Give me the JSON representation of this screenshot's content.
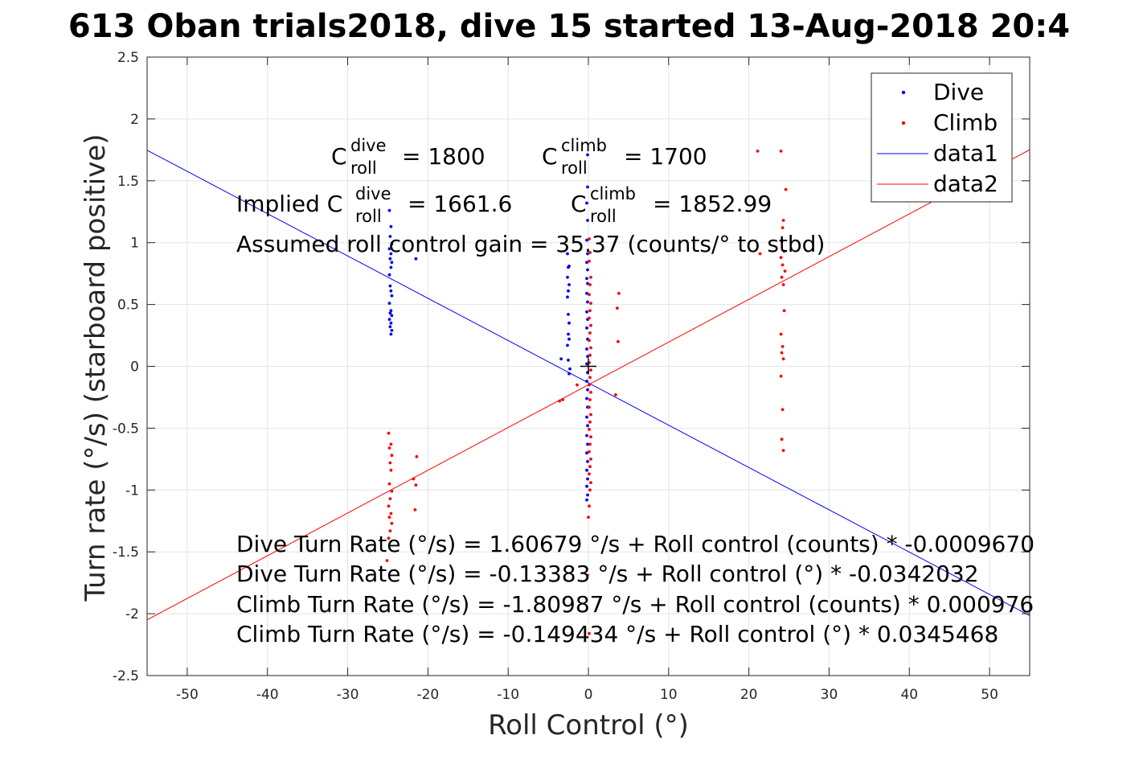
{
  "chart_data": {
    "type": "scatter",
    "title": "613 Oban trials2018, dive 15 started 13-Aug-2018 20:4",
    "xlabel": "Roll Control (°)",
    "ylabel": "Turn rate (°/s) (starboard positive)",
    "xlim": [
      -55,
      55
    ],
    "ylim": [
      -2.5,
      2.5
    ],
    "xticks": [
      -50,
      -40,
      -30,
      -20,
      -10,
      0,
      10,
      20,
      30,
      40,
      50
    ],
    "xtick_labels": [
      "-50",
      "-40",
      "-30",
      "-20",
      "-10",
      "0",
      "10",
      "20",
      "30",
      "40",
      "50"
    ],
    "yticks": [
      -2.5,
      -2,
      -1.5,
      -1,
      -0.5,
      0,
      0.5,
      1,
      1.5,
      2,
      2.5
    ],
    "ytick_labels": [
      "-2.5",
      "-2",
      "-1.5",
      "-1",
      "-0.5",
      "0",
      "0.5",
      "1",
      "1.5",
      "2",
      "2.5"
    ],
    "grid": true,
    "legend": {
      "placement": "top-right",
      "entries": [
        {
          "label": "Dive",
          "kind": "point",
          "color": "#0000ff"
        },
        {
          "label": "Climb",
          "kind": "point",
          "color": "#ff0000"
        },
        {
          "label": "data1",
          "kind": "line",
          "color": "#0000ff"
        },
        {
          "label": "data2",
          "kind": "line",
          "color": "#ff0000"
        }
      ]
    },
    "series": [
      {
        "name": "Dive",
        "color": "#0000ff",
        "points": [
          [
            -24.8,
            1.26
          ],
          [
            -24.6,
            1.13
          ],
          [
            -24.7,
            1.05
          ],
          [
            -24.5,
            0.99
          ],
          [
            -24.8,
            0.95
          ],
          [
            -24.6,
            0.91
          ],
          [
            -24.7,
            0.87
          ],
          [
            -24.5,
            0.84
          ],
          [
            -24.6,
            0.8
          ],
          [
            -24.8,
            0.74
          ],
          [
            -24.7,
            0.65
          ],
          [
            -24.6,
            0.61
          ],
          [
            -24.5,
            0.57
          ],
          [
            -24.8,
            0.51
          ],
          [
            -24.6,
            0.45
          ],
          [
            -24.7,
            0.43
          ],
          [
            -24.5,
            0.41
          ],
          [
            -24.8,
            0.38
          ],
          [
            -24.6,
            0.35
          ],
          [
            -24.7,
            0.32
          ],
          [
            -24.5,
            0.29
          ],
          [
            -24.6,
            0.26
          ],
          [
            -21.5,
            0.87
          ],
          [
            -2.6,
            0.91
          ],
          [
            -2.4,
            0.81
          ],
          [
            -2.5,
            0.8
          ],
          [
            -2.6,
            0.72
          ],
          [
            -2.4,
            0.66
          ],
          [
            -2.5,
            0.61
          ],
          [
            -2.6,
            0.56
          ],
          [
            -2.5,
            0.42
          ],
          [
            -2.4,
            0.35
          ],
          [
            -2.5,
            0.26
          ],
          [
            -2.4,
            0.22
          ],
          [
            -2.6,
            0.17
          ],
          [
            -2.5,
            0.05
          ],
          [
            -3.4,
            0.06
          ],
          [
            -2.3,
            -0.02
          ],
          [
            -2.4,
            -0.06
          ],
          [
            -0.1,
            1.71
          ],
          [
            -0.1,
            1.45
          ],
          [
            -0.2,
            1.32
          ],
          [
            -0.1,
            1.18
          ],
          [
            -0.2,
            1.02
          ],
          [
            -0.1,
            0.91
          ],
          [
            -0.2,
            0.84
          ],
          [
            -0.1,
            0.78
          ],
          [
            -0.2,
            0.71
          ],
          [
            -0.1,
            0.67
          ],
          [
            -0.2,
            0.59
          ],
          [
            -0.1,
            0.52
          ],
          [
            -0.2,
            0.44
          ],
          [
            -0.1,
            0.38
          ],
          [
            -0.2,
            0.31
          ],
          [
            -0.1,
            0.22
          ],
          [
            -0.2,
            0.14
          ],
          [
            -0.1,
            0.08
          ],
          [
            -0.2,
            0.02
          ],
          [
            -0.1,
            -0.05
          ],
          [
            -0.2,
            -0.12
          ],
          [
            -0.1,
            -0.19
          ],
          [
            -0.2,
            -0.26
          ],
          [
            -0.1,
            -0.33
          ],
          [
            -0.2,
            -0.41
          ],
          [
            -0.1,
            -0.48
          ],
          [
            -0.2,
            -0.56
          ],
          [
            -0.1,
            -0.63
          ],
          [
            -0.2,
            -0.7
          ],
          [
            -0.1,
            -0.77
          ],
          [
            -0.2,
            -0.84
          ],
          [
            -0.1,
            -0.91
          ],
          [
            -0.2,
            -0.97
          ],
          [
            -0.1,
            -1.04
          ],
          [
            -0.2,
            -1.08
          ]
        ]
      },
      {
        "name": "Climb",
        "color": "#ff0000",
        "points": [
          [
            -24.9,
            -0.54
          ],
          [
            -24.6,
            -0.63
          ],
          [
            -24.8,
            -0.66
          ],
          [
            -24.5,
            -0.72
          ],
          [
            -24.7,
            -0.78
          ],
          [
            -24.6,
            -0.84
          ],
          [
            -24.8,
            -0.95
          ],
          [
            -24.5,
            -1.01
          ],
          [
            -24.7,
            -1.07
          ],
          [
            -24.9,
            -1.13
          ],
          [
            -24.6,
            -1.19
          ],
          [
            -24.8,
            -1.22
          ],
          [
            -24.5,
            -1.27
          ],
          [
            -24.7,
            -1.33
          ],
          [
            -24.9,
            -1.39
          ],
          [
            -25.1,
            -1.57
          ],
          [
            -21.4,
            -0.73
          ],
          [
            -21.8,
            -0.91
          ],
          [
            -21.5,
            -0.96
          ],
          [
            -21.6,
            -1.16
          ],
          [
            -3.6,
            -0.28
          ],
          [
            -3.2,
            -0.27
          ],
          [
            -1.4,
            -0.15
          ],
          [
            0.1,
            1.03
          ],
          [
            0.2,
            0.92
          ],
          [
            0.1,
            0.85
          ],
          [
            0.3,
            0.72
          ],
          [
            0.2,
            0.66
          ],
          [
            0.1,
            0.58
          ],
          [
            0.3,
            0.51
          ],
          [
            0.2,
            0.45
          ],
          [
            0.1,
            0.39
          ],
          [
            0.3,
            0.33
          ],
          [
            0.2,
            0.27
          ],
          [
            0.1,
            0.21
          ],
          [
            0.3,
            0.15
          ],
          [
            0.2,
            0.09
          ],
          [
            0.1,
            0.03
          ],
          [
            0.3,
            -0.03
          ],
          [
            0.2,
            -0.09
          ],
          [
            0.1,
            -0.15
          ],
          [
            0.3,
            -0.21
          ],
          [
            0.2,
            -0.27
          ],
          [
            0.1,
            -0.33
          ],
          [
            0.3,
            -0.39
          ],
          [
            0.2,
            -0.45
          ],
          [
            0.1,
            -0.51
          ],
          [
            0.3,
            -0.57
          ],
          [
            0.2,
            -0.63
          ],
          [
            0.1,
            -0.69
          ],
          [
            0.3,
            -0.75
          ],
          [
            0.2,
            -0.81
          ],
          [
            0.1,
            -0.87
          ],
          [
            0.3,
            -0.94
          ],
          [
            0.2,
            -1.0
          ],
          [
            0.1,
            -1.13
          ],
          [
            0.0,
            -1.22
          ],
          [
            -0.1,
            -1.69
          ],
          [
            0.1,
            -2.16
          ],
          [
            3.8,
            0.59
          ],
          [
            3.6,
            0.47
          ],
          [
            3.7,
            0.2
          ],
          [
            3.4,
            -0.23
          ],
          [
            21.1,
            1.74
          ],
          [
            24.0,
            1.74
          ],
          [
            21.4,
            0.91
          ],
          [
            24.6,
            1.43
          ],
          [
            24.3,
            1.18
          ],
          [
            24.2,
            1.12
          ],
          [
            24.1,
            1.01
          ],
          [
            24.4,
            0.93
          ],
          [
            24.0,
            0.88
          ],
          [
            24.2,
            0.82
          ],
          [
            24.5,
            0.77
          ],
          [
            24.1,
            0.72
          ],
          [
            24.3,
            0.66
          ],
          [
            24.4,
            0.45
          ],
          [
            24.0,
            0.26
          ],
          [
            24.2,
            0.16
          ],
          [
            24.1,
            0.11
          ],
          [
            24.3,
            0.06
          ],
          [
            24.0,
            -0.08
          ],
          [
            24.2,
            -0.35
          ],
          [
            24.1,
            -0.59
          ],
          [
            24.3,
            -0.68
          ]
        ]
      }
    ],
    "fit_lines": [
      {
        "name": "data1",
        "color": "#0000ff",
        "intercept": -0.13383,
        "slope": -0.0342032
      },
      {
        "name": "data2",
        "color": "#ff0000",
        "intercept": -0.149434,
        "slope": 0.0345468
      }
    ],
    "centroid_marker": {
      "x": 0,
      "y": 0,
      "symbol": "+"
    },
    "annotations": {
      "c_roll_label": "C",
      "dive_sup": "dive",
      "climb_sup": "climb",
      "roll_sub": "roll",
      "dive_c_roll_value": "= 1800",
      "climb_c_roll_value": "= 1700",
      "implied_prefix": "Implied C",
      "implied_dive_value": "= 1661.6",
      "implied_climb_value": "= 1852.99",
      "gain_text": "Assumed roll control gain = 35.37 (counts/° to stbd)",
      "equations": [
        "Dive Turn Rate (°/s) = 1.60679 °/s + Roll control (counts) * -0.0009670",
        "Dive Turn Rate (°/s) = -0.13383 °/s + Roll control (°) * -0.0342032",
        "Climb Turn Rate (°/s) = -1.80987 °/s + Roll control (counts) * 0.000976",
        "Climb Turn Rate (°/s) = -0.149434 °/s + Roll control (°) * 0.0345468"
      ]
    }
  }
}
